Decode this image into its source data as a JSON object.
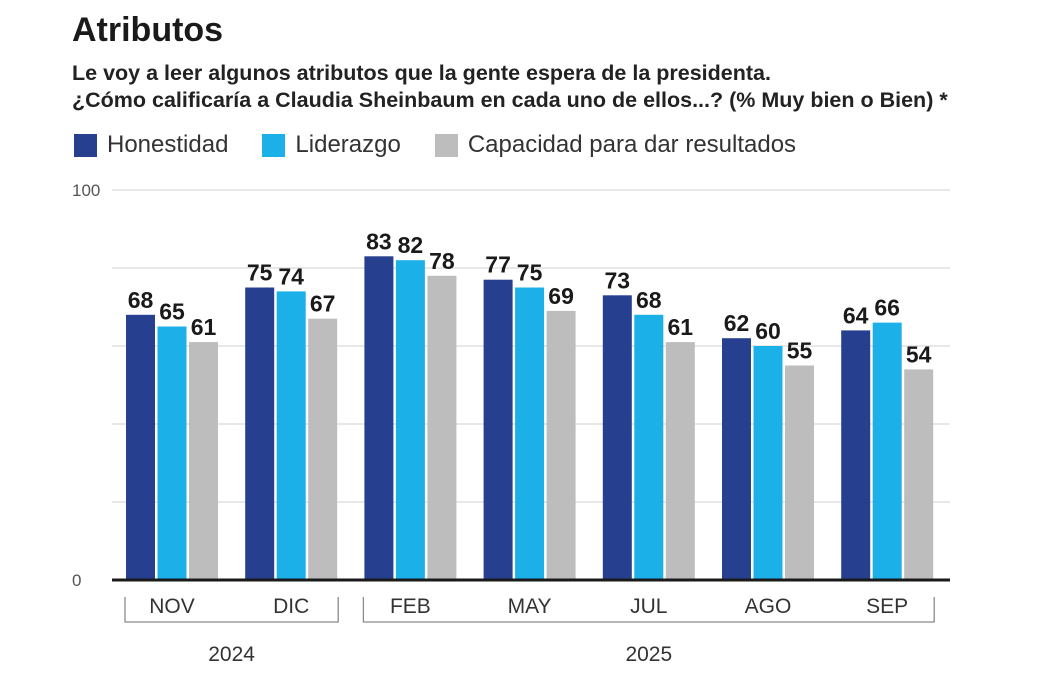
{
  "colors": {
    "background": "#FFFFFF",
    "gridline": "#DADADA",
    "baseline": "#1A1A1A",
    "bracket": "#8C8C8C"
  },
  "chart_data": {
    "type": "bar",
    "title": "Atributos",
    "subtitle": [
      "Le voy a leer algunos atributos que la gente espera de la presidenta.",
      "¿Cómo calificaría a Claudia Sheinbaum en cada uno de ellos...? (% Muy bien o Bien) *"
    ],
    "categories": [
      "NOV",
      "DIC",
      "FEB",
      "MAY",
      "JUL",
      "AGO",
      "SEP"
    ],
    "category_groups": [
      {
        "label": "2024",
        "first": 0,
        "last": 1
      },
      {
        "label": "2025",
        "first": 2,
        "last": 6
      }
    ],
    "series": [
      {
        "name": "Honestidad",
        "color": "#26408F",
        "values": [
          68,
          75,
          83,
          77,
          73,
          62,
          64
        ]
      },
      {
        "name": "Liderazgo",
        "color": "#1CB0E9",
        "values": [
          65,
          74,
          82,
          75,
          68,
          60,
          66
        ]
      },
      {
        "name": "Capacidad para dar resultados",
        "color": "#BDBDBD",
        "values": [
          61,
          67,
          78,
          69,
          61,
          55,
          54
        ]
      }
    ],
    "ylim": [
      0,
      100
    ],
    "yticks": [
      0,
      100
    ],
    "gridlines_at": [
      20,
      40,
      60,
      80,
      100
    ],
    "grid": true,
    "data_labels": true,
    "legend": "top-left"
  }
}
